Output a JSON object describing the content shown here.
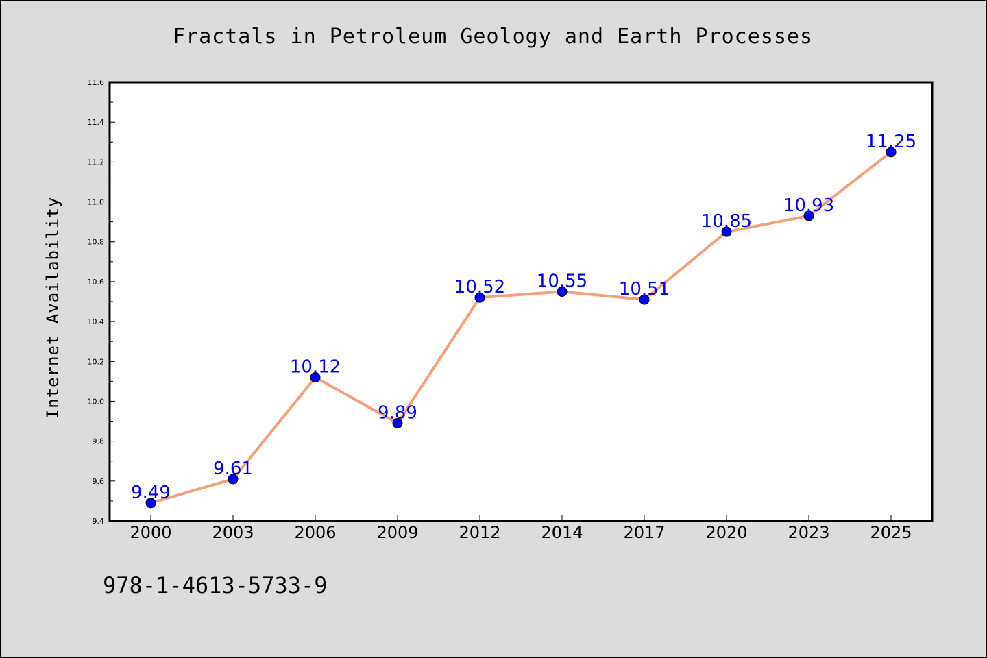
{
  "chart_data": {
    "type": "line",
    "title": "Fractals in Petroleum Geology and Earth Processes",
    "xlabel": "",
    "ylabel": "Internet Availability",
    "categories": [
      "2000",
      "2003",
      "2006",
      "2009",
      "2012",
      "2014",
      "2017",
      "2020",
      "2023",
      "2025"
    ],
    "series": [
      {
        "values": [
          9.49,
          9.61,
          10.12,
          9.89,
          10.52,
          10.55,
          10.51,
          10.85,
          10.93,
          11.25
        ],
        "data_labels": [
          "9.49",
          "9.61",
          "10.12",
          "9.89",
          "10.52",
          "10.55",
          "10.51",
          "10.85",
          "10.93",
          "11.25"
        ],
        "line_color": "#f4a07a",
        "marker_color": "#0000ff",
        "label_color": "#0000ff"
      }
    ],
    "ylim": [
      9.4,
      11.6
    ],
    "yticks": [
      "9.4",
      "9.6",
      "9.8",
      "10.0",
      "10.2",
      "10.4",
      "10.6",
      "10.8",
      "11.0",
      "11.2",
      "11.4",
      "11.6"
    ],
    "grid": false,
    "legend": false,
    "plot_background": "#ffffff",
    "figure_background": "#dcdcdc"
  },
  "footer": {
    "isbn": "978-1-4613-5733-9"
  }
}
